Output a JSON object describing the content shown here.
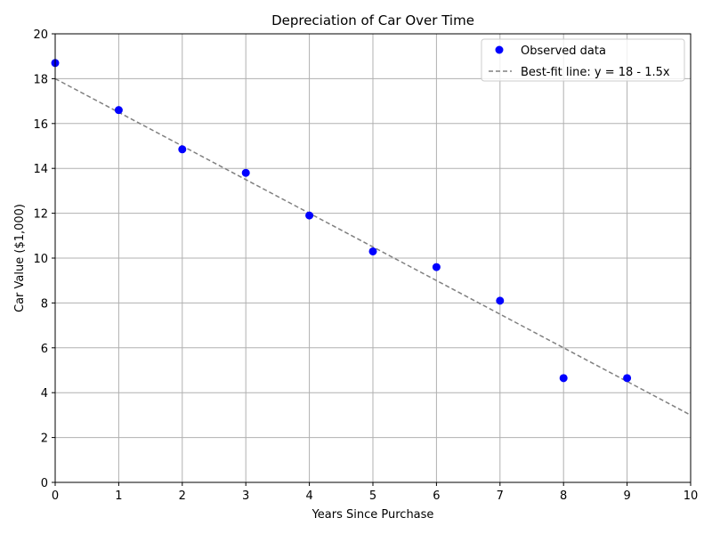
{
  "chart_data": {
    "type": "scatter",
    "title": "Depreciation of Car Over Time",
    "xlabel": "Years Since Purchase",
    "ylabel": "Car Value ($1,000)",
    "xlim": [
      0,
      10
    ],
    "ylim": [
      0,
      20
    ],
    "xticks": [
      "0",
      "1",
      "2",
      "3",
      "4",
      "5",
      "6",
      "7",
      "8",
      "9",
      "10"
    ],
    "yticks": [
      "0",
      "2",
      "4",
      "6",
      "8",
      "10",
      "12",
      "14",
      "16",
      "18",
      "20"
    ],
    "grid": true,
    "legend_position": "top-right",
    "series": [
      {
        "name": "Observed data",
        "kind": "scatter",
        "color": "#0000ff",
        "x": [
          0,
          1,
          2,
          3,
          4,
          5,
          6,
          7,
          8,
          9
        ],
        "y": [
          18.7,
          16.6,
          14.85,
          13.8,
          11.9,
          10.3,
          9.6,
          8.1,
          4.65,
          4.65
        ]
      },
      {
        "name": "Best-fit line: y = 18 - 1.5x",
        "kind": "line",
        "style": "dashed",
        "color": "#808080",
        "x": [
          0,
          10
        ],
        "y": [
          18,
          3
        ]
      }
    ]
  }
}
